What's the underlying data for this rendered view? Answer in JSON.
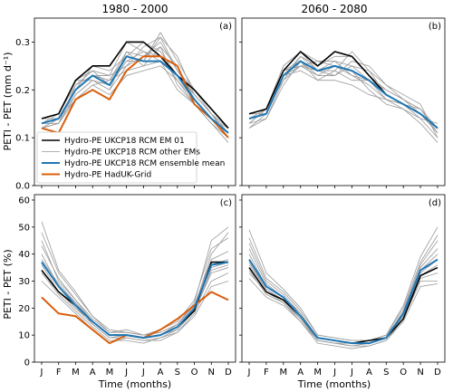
{
  "figure": {
    "col_titles": [
      "1980 - 2000",
      "2060 - 2080"
    ],
    "xlabel": "Time (months)",
    "ylabel_top": "PETI - PET (mm d⁻¹)",
    "ylabel_bottom": "PETI - PET (%)"
  },
  "legend": {
    "position": "lower-left of panel (a)",
    "entries": [
      {
        "label": "Hydro-PE UKCP18 RCM EM 01",
        "color": "#000000"
      },
      {
        "label": "Hydro-PE UKCP18 RCM other EMs",
        "color": "#999999"
      },
      {
        "label": "Hydro-PE UKCP18 RCM ensemble mean",
        "color": "#1f77b4"
      },
      {
        "label": "Hydro-PE HadUK-Grid",
        "color": "#d95f0e"
      }
    ]
  },
  "chart_data": [
    {
      "type": "line",
      "panel_label": "(a)",
      "x": [
        "J",
        "F",
        "M",
        "A",
        "M",
        "J",
        "J",
        "A",
        "S",
        "O",
        "N",
        "D"
      ],
      "ylim": [
        0.0,
        0.35
      ],
      "yticks": [
        "0.0",
        "0.1",
        "0.2",
        "0.3"
      ],
      "ytick_values": [
        0.0,
        0.1,
        0.2,
        0.3
      ],
      "show_xticklabels": false,
      "series": [
        {
          "name": "Hydro-PE UKCP18 RCM other EMs",
          "role": "other",
          "values": [
            0.13,
            0.14,
            0.2,
            0.23,
            0.22,
            0.28,
            0.27,
            0.29,
            0.21,
            0.17,
            0.14,
            0.11
          ]
        },
        {
          "name": "Hydro-PE UKCP18 RCM other EMs",
          "role": "other",
          "values": [
            0.12,
            0.14,
            0.19,
            0.22,
            0.2,
            0.25,
            0.29,
            0.31,
            0.24,
            0.19,
            0.15,
            0.12
          ]
        },
        {
          "name": "Hydro-PE UKCP18 RCM other EMs",
          "role": "other",
          "values": [
            0.14,
            0.15,
            0.22,
            0.24,
            0.23,
            0.3,
            0.28,
            0.27,
            0.22,
            0.18,
            0.14,
            0.1
          ]
        },
        {
          "name": "Hydro-PE UKCP18 RCM other EMs",
          "role": "other",
          "values": [
            0.13,
            0.13,
            0.21,
            0.24,
            0.21,
            0.26,
            0.26,
            0.32,
            0.26,
            0.2,
            0.16,
            0.12
          ]
        },
        {
          "name": "Hydro-PE UKCP18 RCM other EMs",
          "role": "other",
          "values": [
            0.12,
            0.14,
            0.18,
            0.21,
            0.19,
            0.23,
            0.24,
            0.25,
            0.22,
            0.17,
            0.13,
            0.09
          ]
        },
        {
          "name": "Hydro-PE UKCP18 RCM other EMs",
          "role": "other",
          "values": [
            0.14,
            0.14,
            0.2,
            0.25,
            0.24,
            0.27,
            0.3,
            0.28,
            0.23,
            0.19,
            0.15,
            0.11
          ]
        },
        {
          "name": "Hydro-PE UKCP18 RCM other EMs",
          "role": "other",
          "values": [
            0.13,
            0.15,
            0.21,
            0.23,
            0.22,
            0.24,
            0.25,
            0.29,
            0.25,
            0.18,
            0.14,
            0.11
          ]
        },
        {
          "name": "Hydro-PE UKCP18 RCM other EMs",
          "role": "other",
          "values": [
            0.12,
            0.13,
            0.19,
            0.22,
            0.2,
            0.28,
            0.25,
            0.26,
            0.2,
            0.17,
            0.13,
            0.1
          ]
        },
        {
          "name": "Hydro-PE UKCP18 RCM other EMs",
          "role": "other",
          "values": [
            0.13,
            0.14,
            0.2,
            0.23,
            0.23,
            0.25,
            0.27,
            0.3,
            0.24,
            0.2,
            0.15,
            0.11
          ]
        },
        {
          "name": "Hydro-PE UKCP18 RCM other EMs",
          "role": "other",
          "values": [
            0.14,
            0.15,
            0.22,
            0.22,
            0.21,
            0.26,
            0.28,
            0.26,
            0.23,
            0.18,
            0.14,
            0.12
          ]
        },
        {
          "name": "Hydro-PE UKCP18 RCM other EMs",
          "role": "other",
          "values": [
            0.12,
            0.13,
            0.18,
            0.21,
            0.22,
            0.27,
            0.26,
            0.31,
            0.27,
            0.19,
            0.15,
            0.1
          ]
        },
        {
          "name": "Hydro-PE UKCP18 RCM EM 01",
          "role": "em01",
          "values": [
            0.14,
            0.15,
            0.22,
            0.25,
            0.25,
            0.3,
            0.3,
            0.27,
            0.23,
            0.2,
            0.16,
            0.12
          ]
        },
        {
          "name": "Hydro-PE UKCP18 RCM ensemble mean",
          "role": "mean",
          "values": [
            0.13,
            0.14,
            0.2,
            0.23,
            0.21,
            0.27,
            0.26,
            0.26,
            0.23,
            0.18,
            0.14,
            0.11
          ]
        },
        {
          "name": "Hydro-PE HadUK-Grid",
          "role": "obs",
          "values": [
            0.12,
            0.11,
            0.18,
            0.2,
            0.18,
            0.24,
            0.27,
            0.27,
            0.25,
            0.17,
            0.14,
            0.1
          ]
        }
      ]
    },
    {
      "type": "line",
      "panel_label": "(b)",
      "x": [
        "J",
        "F",
        "M",
        "A",
        "M",
        "J",
        "J",
        "A",
        "S",
        "O",
        "N",
        "D"
      ],
      "ylim": [
        0.0,
        0.35
      ],
      "yticks": [],
      "ytick_values": [
        0.0,
        0.1,
        0.2,
        0.3
      ],
      "show_xticklabels": false,
      "series": [
        {
          "name": "Hydro-PE UKCP18 RCM other EMs",
          "role": "other",
          "values": [
            0.14,
            0.15,
            0.23,
            0.27,
            0.24,
            0.26,
            0.25,
            0.22,
            0.2,
            0.18,
            0.16,
            0.12
          ]
        },
        {
          "name": "Hydro-PE UKCP18 RCM other EMs",
          "role": "other",
          "values": [
            0.13,
            0.16,
            0.24,
            0.26,
            0.22,
            0.24,
            0.28,
            0.24,
            0.19,
            0.17,
            0.15,
            0.11
          ]
        },
        {
          "name": "Hydro-PE UKCP18 RCM other EMs",
          "role": "other",
          "values": [
            0.15,
            0.16,
            0.25,
            0.28,
            0.26,
            0.25,
            0.23,
            0.21,
            0.18,
            0.17,
            0.14,
            0.13
          ]
        },
        {
          "name": "Hydro-PE UKCP18 RCM other EMs",
          "role": "other",
          "values": [
            0.12,
            0.14,
            0.22,
            0.25,
            0.23,
            0.23,
            0.26,
            0.25,
            0.21,
            0.19,
            0.17,
            0.1
          ]
        },
        {
          "name": "Hydro-PE UKCP18 RCM other EMs",
          "role": "other",
          "values": [
            0.14,
            0.15,
            0.23,
            0.24,
            0.22,
            0.22,
            0.21,
            0.19,
            0.18,
            0.16,
            0.13,
            0.09
          ]
        },
        {
          "name": "Hydro-PE UKCP18 RCM other EMs",
          "role": "other",
          "values": [
            0.13,
            0.16,
            0.22,
            0.27,
            0.25,
            0.27,
            0.27,
            0.23,
            0.2,
            0.18,
            0.16,
            0.12
          ]
        },
        {
          "name": "Hydro-PE UKCP18 RCM other EMs",
          "role": "other",
          "values": [
            0.15,
            0.15,
            0.24,
            0.25,
            0.24,
            0.24,
            0.22,
            0.22,
            0.19,
            0.17,
            0.15,
            0.11
          ]
        },
        {
          "name": "Hydro-PE UKCP18 RCM other EMs",
          "role": "other",
          "values": [
            0.13,
            0.14,
            0.21,
            0.26,
            0.23,
            0.25,
            0.24,
            0.2,
            0.17,
            0.16,
            0.14,
            0.1
          ]
        },
        {
          "name": "Hydro-PE UKCP18 RCM other EMs",
          "role": "other",
          "values": [
            0.14,
            0.16,
            0.25,
            0.28,
            0.24,
            0.23,
            0.25,
            0.24,
            0.21,
            0.18,
            0.15,
            0.12
          ]
        },
        {
          "name": "Hydro-PE UKCP18 RCM other EMs",
          "role": "other",
          "values": [
            0.12,
            0.15,
            0.23,
            0.25,
            0.26,
            0.26,
            0.23,
            0.22,
            0.18,
            0.17,
            0.16,
            0.11
          ]
        },
        {
          "name": "Hydro-PE UKCP18 RCM EM 01",
          "role": "em01",
          "values": [
            0.15,
            0.16,
            0.24,
            0.28,
            0.25,
            0.28,
            0.27,
            0.23,
            0.19,
            0.17,
            0.15,
            0.12
          ]
        },
        {
          "name": "Hydro-PE UKCP18 RCM ensemble mean",
          "role": "mean",
          "values": [
            0.14,
            0.15,
            0.23,
            0.26,
            0.24,
            0.25,
            0.24,
            0.22,
            0.19,
            0.17,
            0.15,
            0.12
          ]
        }
      ]
    },
    {
      "type": "line",
      "panel_label": "(c)",
      "x": [
        "J",
        "F",
        "M",
        "A",
        "M",
        "J",
        "J",
        "A",
        "S",
        "O",
        "N",
        "D"
      ],
      "ylim": [
        0,
        62
      ],
      "yticks": [
        "0",
        "10",
        "20",
        "30",
        "40",
        "50",
        "60"
      ],
      "ytick_values": [
        0,
        10,
        20,
        30,
        40,
        50,
        60
      ],
      "show_xticklabels": true,
      "series": [
        {
          "name": "Hydro-PE UKCP18 RCM other EMs",
          "role": "other",
          "values": [
            52,
            34,
            26,
            17,
            11,
            11,
            10,
            11,
            14,
            22,
            45,
            50
          ]
        },
        {
          "name": "Hydro-PE UKCP18 RCM other EMs",
          "role": "other",
          "values": [
            45,
            30,
            23,
            15,
            10,
            10,
            9,
            10,
            13,
            20,
            40,
            48
          ]
        },
        {
          "name": "Hydro-PE UKCP18 RCM other EMs",
          "role": "other",
          "values": [
            40,
            28,
            22,
            14,
            9,
            9,
            8,
            9,
            12,
            19,
            34,
            36
          ]
        },
        {
          "name": "Hydro-PE UKCP18 RCM other EMs",
          "role": "other",
          "values": [
            36,
            26,
            20,
            15,
            10,
            10,
            9,
            10,
            14,
            21,
            36,
            38
          ]
        },
        {
          "name": "Hydro-PE UKCP18 RCM other EMs",
          "role": "other",
          "values": [
            33,
            25,
            19,
            13,
            8,
            8,
            7,
            9,
            11,
            18,
            30,
            33
          ]
        },
        {
          "name": "Hydro-PE UKCP18 RCM other EMs",
          "role": "other",
          "values": [
            30,
            24,
            18,
            12,
            7,
            9,
            8,
            8,
            11,
            17,
            28,
            30
          ]
        },
        {
          "name": "Hydro-PE UKCP18 RCM other EMs",
          "role": "other",
          "values": [
            43,
            31,
            23,
            16,
            11,
            12,
            10,
            11,
            14,
            21,
            38,
            41
          ]
        },
        {
          "name": "Hydro-PE UKCP18 RCM other EMs",
          "role": "other",
          "values": [
            38,
            29,
            22,
            15,
            10,
            10,
            9,
            10,
            13,
            20,
            35,
            37
          ]
        },
        {
          "name": "Hydro-PE UKCP18 RCM other EMs",
          "role": "other",
          "values": [
            34,
            26,
            20,
            14,
            9,
            10,
            9,
            10,
            12,
            19,
            33,
            35
          ]
        },
        {
          "name": "Hydro-PE UKCP18 RCM other EMs",
          "role": "other",
          "values": [
            48,
            33,
            25,
            17,
            12,
            11,
            10,
            12,
            15,
            23,
            42,
            46
          ]
        },
        {
          "name": "Hydro-PE UKCP18 RCM EM 01",
          "role": "em01",
          "values": [
            34,
            26,
            21,
            15,
            10,
            10,
            9,
            10,
            13,
            19,
            37,
            37
          ]
        },
        {
          "name": "Hydro-PE UKCP18 RCM ensemble mean",
          "role": "mean",
          "values": [
            37,
            28,
            21,
            15,
            10,
            10,
            9,
            10,
            13,
            20,
            36,
            37
          ]
        },
        {
          "name": "Hydro-PE HadUK-Grid",
          "role": "obs",
          "values": [
            24,
            18,
            17,
            12,
            7,
            10,
            9,
            12,
            16,
            21,
            26,
            23
          ]
        }
      ]
    },
    {
      "type": "line",
      "panel_label": "(d)",
      "x": [
        "J",
        "F",
        "M",
        "A",
        "M",
        "J",
        "J",
        "A",
        "S",
        "O",
        "N",
        "D"
      ],
      "ylim": [
        0,
        62
      ],
      "yticks": [],
      "ytick_values": [
        0,
        10,
        20,
        30,
        40,
        50,
        60
      ],
      "show_xticklabels": true,
      "series": [
        {
          "name": "Hydro-PE UKCP18 RCM other EMs",
          "role": "other",
          "values": [
            49,
            33,
            27,
            20,
            10,
            9,
            8,
            8,
            10,
            21,
            39,
            50
          ]
        },
        {
          "name": "Hydro-PE UKCP18 RCM other EMs",
          "role": "other",
          "values": [
            44,
            30,
            25,
            18,
            9,
            8,
            7,
            7,
            9,
            19,
            36,
            45
          ]
        },
        {
          "name": "Hydro-PE UKCP18 RCM other EMs",
          "role": "other",
          "values": [
            40,
            28,
            24,
            17,
            8,
            7,
            6,
            7,
            9,
            18,
            34,
            40
          ]
        },
        {
          "name": "Hydro-PE UKCP18 RCM other EMs",
          "role": "other",
          "values": [
            37,
            27,
            23,
            16,
            9,
            8,
            7,
            7,
            9,
            17,
            32,
            36
          ]
        },
        {
          "name": "Hydro-PE UKCP18 RCM other EMs",
          "role": "other",
          "values": [
            34,
            25,
            22,
            15,
            8,
            7,
            6,
            6,
            8,
            16,
            30,
            30
          ]
        },
        {
          "name": "Hydro-PE UKCP18 RCM other EMs",
          "role": "other",
          "values": [
            31,
            24,
            21,
            15,
            7,
            6,
            5,
            6,
            8,
            15,
            28,
            29
          ]
        },
        {
          "name": "Hydro-PE UKCP18 RCM other EMs",
          "role": "other",
          "values": [
            42,
            29,
            24,
            18,
            9,
            8,
            7,
            8,
            10,
            18,
            35,
            42
          ]
        },
        {
          "name": "Hydro-PE UKCP18 RCM other EMs",
          "role": "other",
          "values": [
            36,
            27,
            23,
            16,
            8,
            7,
            6,
            7,
            9,
            17,
            33,
            38
          ]
        },
        {
          "name": "Hydro-PE UKCP18 RCM other EMs",
          "role": "other",
          "values": [
            46,
            31,
            26,
            19,
            10,
            9,
            8,
            8,
            10,
            20,
            37,
            47
          ]
        },
        {
          "name": "Hydro-PE UKCP18 RCM other EMs",
          "role": "other",
          "values": [
            33,
            26,
            22,
            16,
            8,
            7,
            7,
            7,
            9,
            16,
            31,
            33
          ]
        },
        {
          "name": "Hydro-PE UKCP18 RCM EM 01",
          "role": "em01",
          "values": [
            35,
            26,
            23,
            17,
            9,
            8,
            7,
            8,
            9,
            16,
            32,
            35
          ]
        },
        {
          "name": "Hydro-PE UKCP18 RCM ensemble mean",
          "role": "mean",
          "values": [
            38,
            28,
            24,
            17,
            9,
            8,
            7,
            7,
            9,
            18,
            34,
            38
          ]
        }
      ]
    }
  ]
}
